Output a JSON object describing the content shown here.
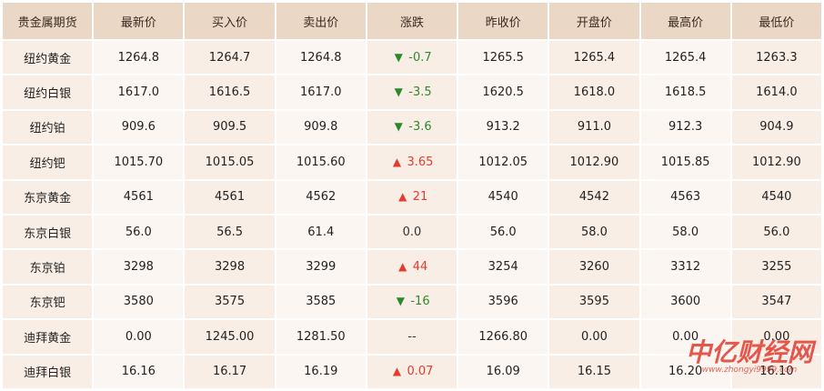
{
  "table": {
    "headers": [
      "贵金属期货",
      "最新价",
      "买入价",
      "卖出价",
      "涨跌",
      "昨收价",
      "开盘价",
      "最高价",
      "最低价"
    ],
    "rows": [
      {
        "name": "纽约黄金",
        "latest": "1264.8",
        "bid": "1264.7",
        "ask": "1264.8",
        "change": "-0.7",
        "dir": "down",
        "prev_close": "1265.5",
        "open": "1265.4",
        "high": "1265.4",
        "low": "1263.3"
      },
      {
        "name": "纽约白银",
        "latest": "1617.0",
        "bid": "1616.5",
        "ask": "1617.0",
        "change": "-3.5",
        "dir": "down",
        "prev_close": "1620.5",
        "open": "1618.0",
        "high": "1618.5",
        "low": "1614.0"
      },
      {
        "name": "纽约铂",
        "latest": "909.6",
        "bid": "909.5",
        "ask": "909.8",
        "change": "-3.6",
        "dir": "down",
        "prev_close": "913.2",
        "open": "911.0",
        "high": "912.3",
        "low": "904.9"
      },
      {
        "name": "纽约钯",
        "latest": "1015.70",
        "bid": "1015.05",
        "ask": "1015.60",
        "change": "3.65",
        "dir": "up",
        "prev_close": "1012.05",
        "open": "1012.90",
        "high": "1015.85",
        "low": "1012.90"
      },
      {
        "name": "东京黄金",
        "latest": "4561",
        "bid": "4561",
        "ask": "4562",
        "change": "21",
        "dir": "up",
        "prev_close": "4540",
        "open": "4542",
        "high": "4563",
        "low": "4540"
      },
      {
        "name": "东京白银",
        "latest": "56.0",
        "bid": "56.5",
        "ask": "61.4",
        "change": "0.0",
        "dir": "flat",
        "prev_close": "56.0",
        "open": "58.0",
        "high": "58.0",
        "low": "56.0"
      },
      {
        "name": "东京铂",
        "latest": "3298",
        "bid": "3298",
        "ask": "3299",
        "change": "44",
        "dir": "up",
        "prev_close": "3254",
        "open": "3260",
        "high": "3312",
        "low": "3255"
      },
      {
        "name": "东京钯",
        "latest": "3580",
        "bid": "3575",
        "ask": "3585",
        "change": "-16",
        "dir": "down",
        "prev_close": "3596",
        "open": "3595",
        "high": "3600",
        "low": "3547"
      },
      {
        "name": "迪拜黄金",
        "latest": "0.00",
        "bid": "1245.00",
        "ask": "1281.50",
        "change": "--",
        "dir": "flat",
        "prev_close": "1266.80",
        "open": "0.00",
        "high": "0.00",
        "low": "0.00"
      },
      {
        "name": "迪拜白银",
        "latest": "16.16",
        "bid": "16.17",
        "ask": "16.19",
        "change": "0.07",
        "dir": "up",
        "prev_close": "16.09",
        "open": "16.15",
        "high": "16.20",
        "low": "16.10"
      }
    ]
  },
  "watermark": {
    "brand": "中亿财经网",
    "url": "www.zhongyi9999.com"
  },
  "colors": {
    "up": "#e23b30",
    "down": "#2a8b2a",
    "header_bg": "#ead7c6",
    "odd_col_bg": "#f9eee6",
    "even_col_bg": "#fbf6f2"
  },
  "icons": {
    "up": "arrow-up-icon",
    "down": "arrow-down-icon"
  }
}
